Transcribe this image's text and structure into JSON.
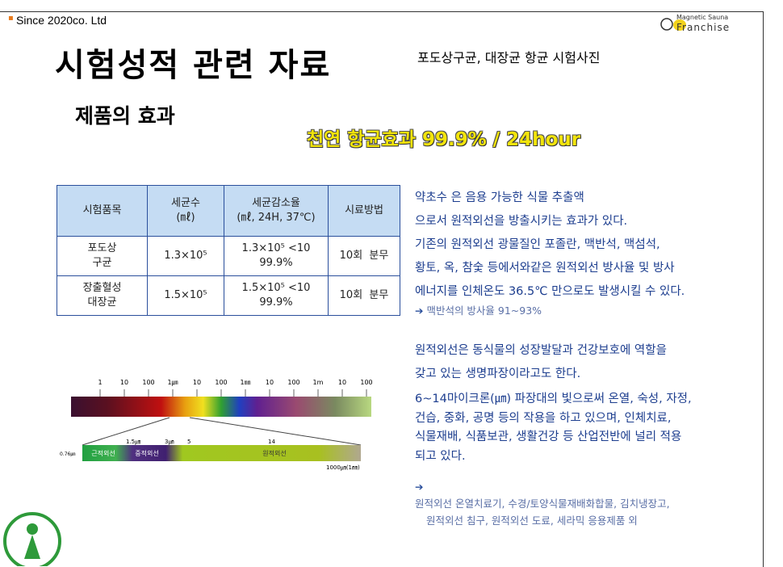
{
  "header": {
    "company": "Since 2020co. Ltd",
    "logo_top": "Magnetic Sauna",
    "logo_bottom": "Franchise",
    "title": "시험성적 관련 자료",
    "subtitle": "포도상구균, 대장균 항균 시험사진",
    "section": "제품의 효과",
    "highlight": "천연 항균효과 99.9% / 24hour"
  },
  "table": {
    "header": [
      "시험품목",
      "세균수\n(㎖)",
      "세균감소율\n(㎖, 24H, 37℃)",
      "시료방법"
    ],
    "rows": [
      [
        "포도상\n구균",
        "1.3×10⁵",
        "1.3×10⁵ <10\n99.9%",
        "10회  분무"
      ],
      [
        "장출혈성\n대장균",
        "1.5×10⁵",
        "1.5×10⁵ <10\n99.9%",
        "10회  분무"
      ]
    ]
  },
  "spectrum": {
    "scale": [
      "1",
      "10",
      "100",
      "1㎛",
      "10",
      "100",
      "1㎜",
      "10",
      "100",
      "1m",
      "10",
      "100"
    ],
    "start": "0.76㎛",
    "marks": [
      "1.5㎛",
      "3㎛",
      "5",
      "14"
    ],
    "bands": [
      "근적외선",
      "중적외선",
      "원적외선"
    ],
    "end": "1000㎛(1㎜)"
  },
  "text": {
    "para1": [
      "약초수 은 음용 가능한 식물 추출액",
      "으로서 원적외선을 방출시키는 효과가 있다.",
      "기존의 원적외선 광물질인 포졸란, 맥반석, 맥섬석,",
      "황토, 옥, 참숯 등에서와같은 원적외선 방사율 및 방사",
      "에너지를 인체온도 36.5℃ 만으로도 발생시킬 수 있다."
    ],
    "note1": "맥반석의 방사율 91~93%",
    "para2": [
      "원적외선은 동식물의 성장발달과 건강보호에 역할을",
      "갖고 있는 생명파장이라고도 한다."
    ],
    "para3": [
      "6~14마이크론(㎛) 파장대의 빛으로써 온열, 숙성, 자정,",
      "건습, 중화, 공명 등의 작용을 하고 있으며, 인체치료,",
      "식물재배, 식품보관, 생활건강 등 산업전반에 널리 적용",
      "되고 있다."
    ],
    "note2": [
      "원적외선 온열치료기, 수경/토양식물재배화합물, 김치냉장고,",
      "원적외선 침구, 원적외선 도료, 세라믹 응용제품 외"
    ]
  }
}
